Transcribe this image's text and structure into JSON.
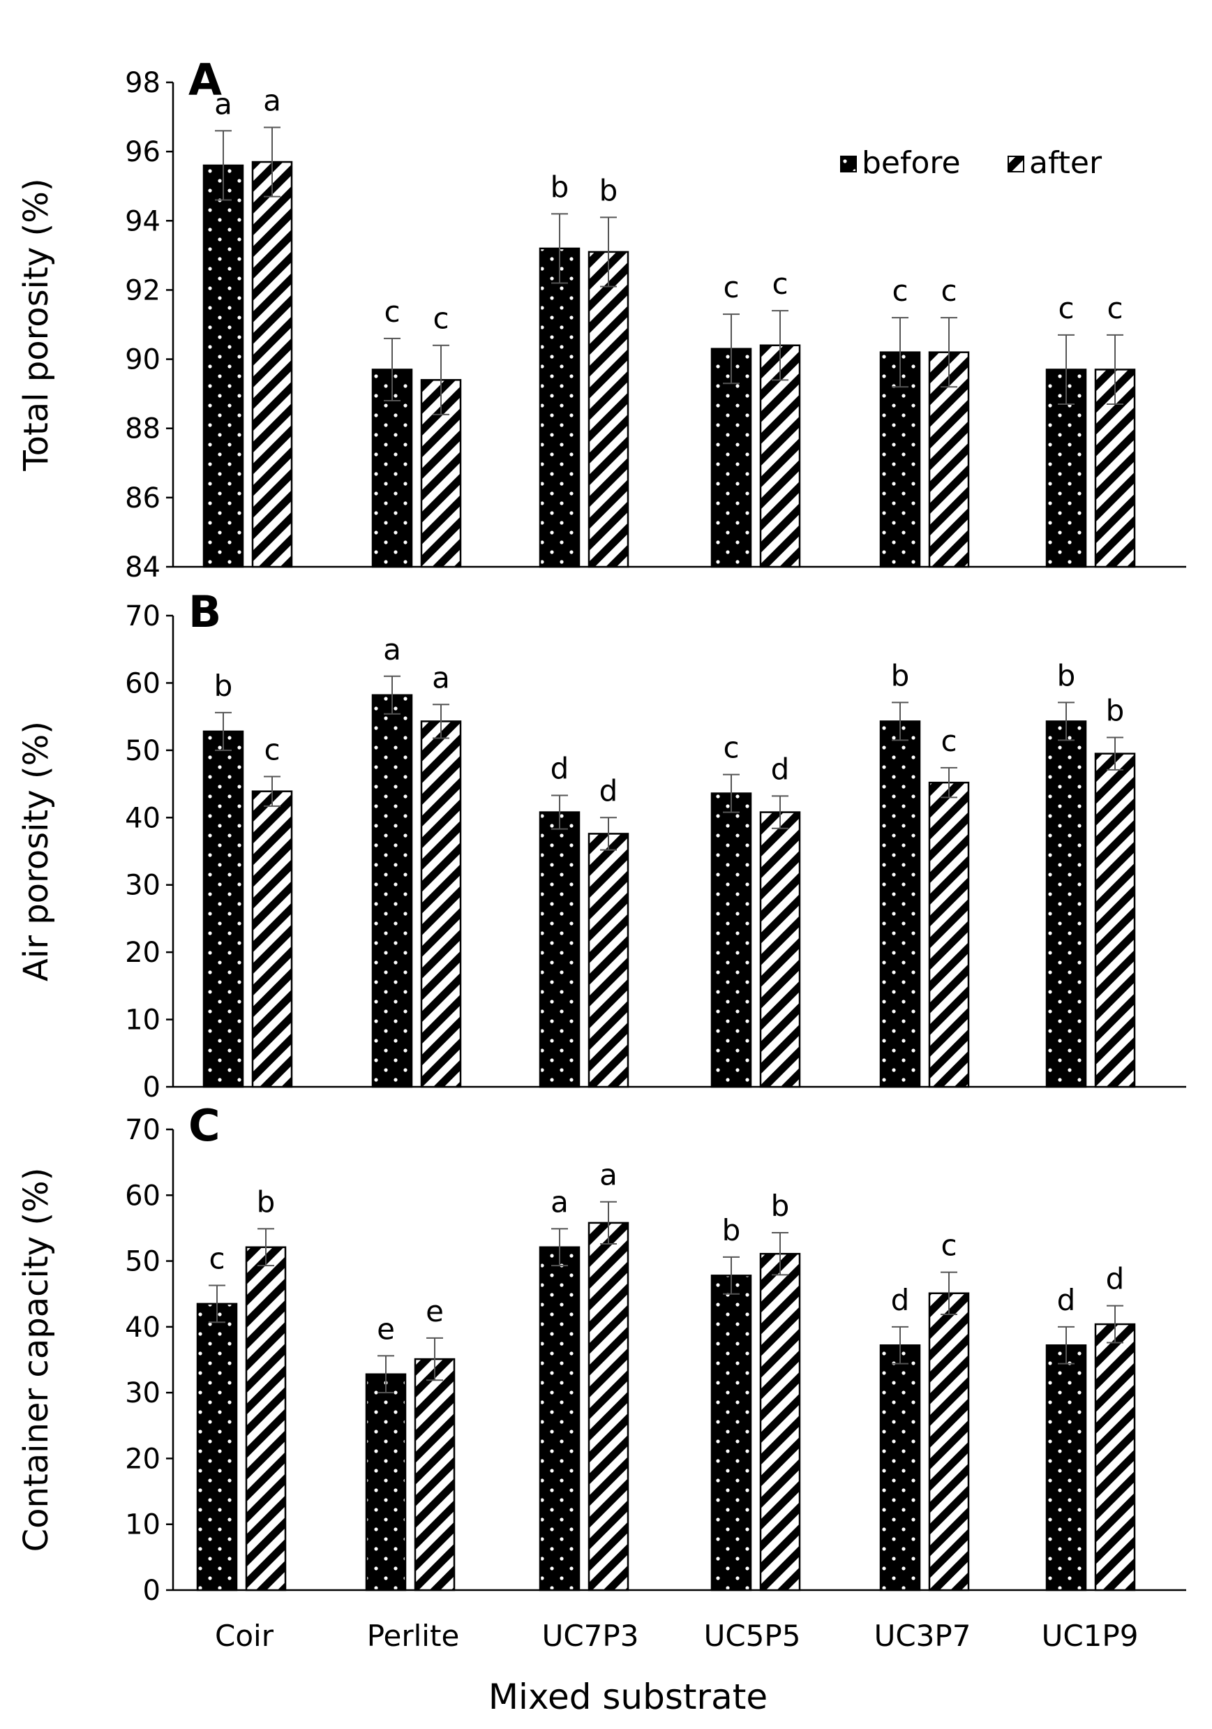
{
  "chart_data": [
    {
      "type": "bar",
      "panel": "A",
      "ylabel": "Total porosity (%)",
      "ylim": [
        84,
        98
      ],
      "yticks": [
        84,
        86,
        88,
        90,
        92,
        94,
        96,
        98
      ],
      "categories": [
        "Coir",
        "Perlite",
        "UC7P3",
        "UC5P5",
        "UC3P7",
        "UC1P9"
      ],
      "legend": {
        "position": "top-right",
        "entries": [
          "before",
          "after"
        ]
      },
      "series": [
        {
          "name": "before",
          "pattern": "dots",
          "values": [
            95.6,
            89.7,
            93.2,
            90.3,
            90.2,
            89.7
          ],
          "errors": [
            1.0,
            0.9,
            1.0,
            1.0,
            1.0,
            1.0
          ],
          "letters": [
            "a",
            "c",
            "b",
            "c",
            "c",
            "c"
          ]
        },
        {
          "name": "after",
          "pattern": "stripes",
          "values": [
            95.7,
            89.4,
            93.1,
            90.4,
            90.2,
            89.7
          ],
          "errors": [
            1.0,
            1.0,
            1.0,
            1.0,
            1.0,
            1.0
          ],
          "letters": [
            "a",
            "c",
            "b",
            "c",
            "c",
            "c"
          ]
        }
      ]
    },
    {
      "type": "bar",
      "panel": "B",
      "ylabel": "Air porosity (%)",
      "ylim": [
        0,
        70
      ],
      "yticks": [
        0,
        10,
        20,
        30,
        40,
        50,
        60,
        70
      ],
      "categories": [
        "Coir",
        "Perlite",
        "UC7P3",
        "UC5P5",
        "UC3P7",
        "UC1P9"
      ],
      "series": [
        {
          "name": "before",
          "pattern": "dots",
          "values": [
            52.8,
            58.2,
            40.8,
            43.6,
            54.3,
            54.3
          ],
          "errors": [
            2.8,
            2.8,
            2.5,
            2.8,
            2.8,
            2.8
          ],
          "letters": [
            "b",
            "a",
            "d",
            "c",
            "b",
            "b"
          ]
        },
        {
          "name": "after",
          "pattern": "stripes",
          "values": [
            43.9,
            54.3,
            37.6,
            40.8,
            45.2,
            49.5
          ],
          "errors": [
            2.2,
            2.5,
            2.4,
            2.4,
            2.2,
            2.4
          ],
          "letters": [
            "c",
            "a",
            "d",
            "d",
            "c",
            "b"
          ]
        }
      ]
    },
    {
      "type": "bar",
      "panel": "C",
      "ylabel": "Container capacity (%)",
      "ylim": [
        0,
        70
      ],
      "yticks": [
        0,
        10,
        20,
        30,
        40,
        50,
        60,
        70
      ],
      "xlabel": "Mixed substrate",
      "categories": [
        "Coir",
        "Perlite",
        "UC7P3",
        "UC5P5",
        "UC3P7",
        "UC1P9"
      ],
      "series": [
        {
          "name": "before",
          "pattern": "dots",
          "values": [
            43.5,
            32.8,
            52.1,
            47.8,
            37.2,
            37.2
          ],
          "errors": [
            2.8,
            2.8,
            2.8,
            2.8,
            2.8,
            2.8
          ],
          "letters": [
            "c",
            "e",
            "a",
            "b",
            "d",
            "d"
          ]
        },
        {
          "name": "after",
          "pattern": "stripes",
          "values": [
            52.1,
            35.1,
            55.8,
            51.1,
            45.1,
            40.4
          ],
          "errors": [
            2.8,
            3.2,
            3.2,
            3.2,
            3.2,
            2.8
          ],
          "letters": [
            "b",
            "e",
            "a",
            "b",
            "c",
            "d"
          ]
        }
      ]
    }
  ]
}
